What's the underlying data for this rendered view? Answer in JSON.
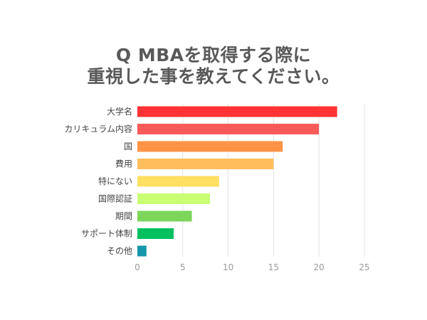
{
  "chart_data": {
    "type": "bar",
    "orientation": "horizontal",
    "title_lines": [
      "Q MBAを取得する際に",
      "重視した事を教えてください。"
    ],
    "categories": [
      "大学名",
      "カリキュラム内容",
      "国",
      "費用",
      "特にない",
      "国際認証",
      "期間",
      "サポート体制",
      "その他"
    ],
    "values": [
      22,
      20,
      16,
      15,
      9,
      8,
      6,
      4,
      1
    ],
    "colors": [
      "#ff3333",
      "#f85a5a",
      "#ff9447",
      "#ffbd5c",
      "#ffdf5f",
      "#c8ff73",
      "#7dd65a",
      "#00c060",
      "#1596aa"
    ],
    "xlim": [
      0,
      25
    ],
    "xticks": [
      "0",
      "5",
      "10",
      "15",
      "20",
      "25"
    ],
    "grid": true,
    "legend": "none"
  }
}
